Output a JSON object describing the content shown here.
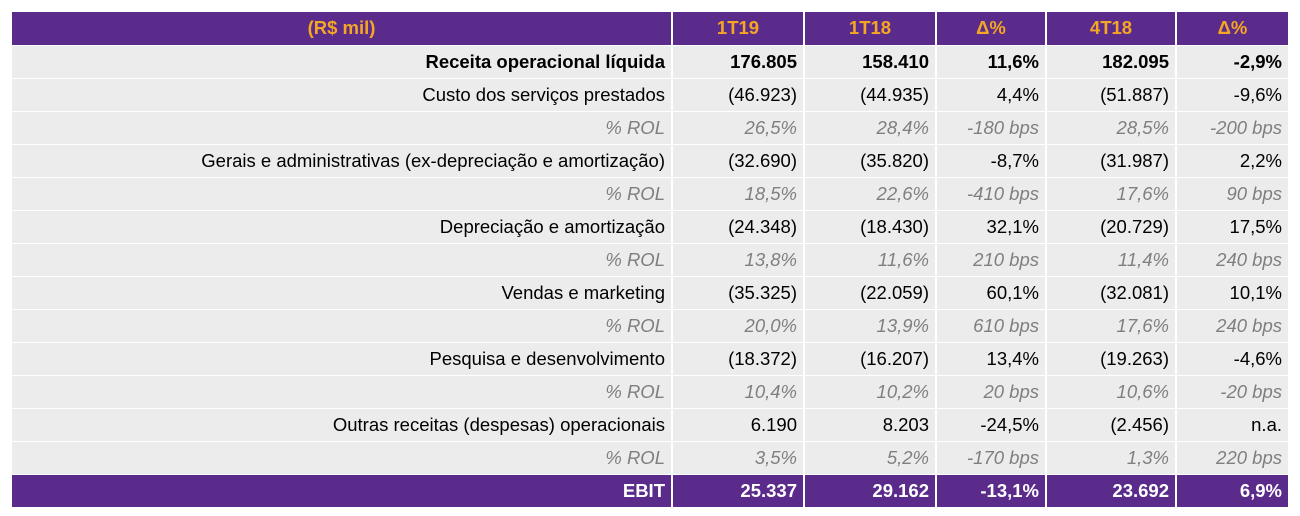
{
  "header": {
    "label": "(R$ mil)",
    "columns": [
      "1T19",
      "1T18",
      "Δ%",
      "4T18",
      "Δ%"
    ]
  },
  "rows": [
    {
      "label": "Receita operacional líquida",
      "values": [
        "176.805",
        "158.410",
        "11,6%",
        "182.095",
        "-2,9%"
      ]
    },
    {
      "label": "Custo dos serviços prestados",
      "values": [
        "(46.923)",
        "(44.935)",
        "4,4%",
        "(51.887)",
        "-9,6%"
      ]
    },
    {
      "label": "% ROL",
      "values": [
        "26,5%",
        "28,4%",
        "-180 bps",
        "28,5%",
        "-200 bps"
      ]
    },
    {
      "label": "Gerais e administrativas (ex-depreciação e amortização)",
      "values": [
        "(32.690)",
        "(35.820)",
        "-8,7%",
        "(31.987)",
        "2,2%"
      ]
    },
    {
      "label": "% ROL",
      "values": [
        "18,5%",
        "22,6%",
        "-410 bps",
        "17,6%",
        "90 bps"
      ]
    },
    {
      "label": "Depreciação e amortização",
      "values": [
        "(24.348)",
        "(18.430)",
        "32,1%",
        "(20.729)",
        "17,5%"
      ]
    },
    {
      "label": "% ROL",
      "values": [
        "13,8%",
        "11,6%",
        "210 bps",
        "11,4%",
        "240 bps"
      ]
    },
    {
      "label": "Vendas e marketing",
      "values": [
        "(35.325)",
        "(22.059)",
        "60,1%",
        "(32.081)",
        "10,1%"
      ]
    },
    {
      "label": "% ROL",
      "values": [
        "20,0%",
        "13,9%",
        "610 bps",
        "17,6%",
        "240 bps"
      ]
    },
    {
      "label": "Pesquisa e desenvolvimento",
      "values": [
        "(18.372)",
        "(16.207)",
        "13,4%",
        "(19.263)",
        "-4,6%"
      ]
    },
    {
      "label": "% ROL",
      "values": [
        "10,4%",
        "10,2%",
        "20 bps",
        "10,6%",
        "-20 bps"
      ]
    },
    {
      "label": "Outras receitas (despesas) operacionais",
      "values": [
        "6.190",
        "8.203",
        "-24,5%",
        "(2.456)",
        "n.a."
      ]
    },
    {
      "label": "% ROL",
      "values": [
        "3,5%",
        "5,2%",
        "-170 bps",
        "1,3%",
        "220 bps"
      ]
    }
  ],
  "total": {
    "label": "EBIT",
    "values": [
      "25.337",
      "29.162",
      "-13,1%",
      "23.692",
      "6,9%"
    ]
  },
  "colors": {
    "header_bg": "#5b2b8c",
    "header_text": "#f5a623",
    "row_bg": "#ececec",
    "pct_text": "#7f7f7f",
    "total_text": "#ffffff"
  }
}
